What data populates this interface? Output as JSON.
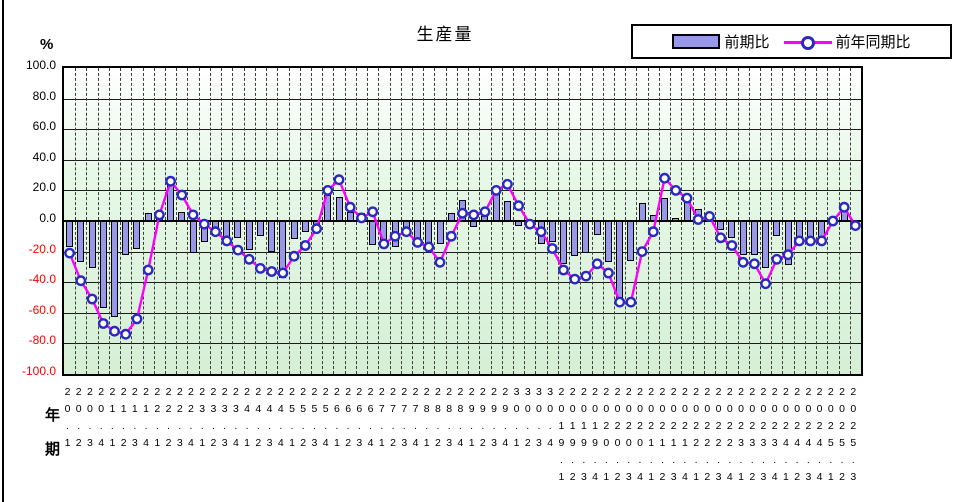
{
  "title": "生産量",
  "y_axis": {
    "unit": "%",
    "ticks": [
      100,
      80,
      60,
      40,
      20,
      0,
      -20,
      -40,
      -60,
      -80,
      -100
    ],
    "tick_format": "one_decimal",
    "negative_tick_color": "#ff0000",
    "positive_tick_color": "#000000"
  },
  "x_axis": {
    "year_label": "年",
    "period_label": "期"
  },
  "legend": [
    {
      "label": "前期比",
      "type": "bar"
    },
    {
      "label": "前年同期比",
      "type": "line"
    }
  ],
  "colors": {
    "bar_fill": "#9898e8",
    "bar_border": "#000000",
    "line": "#ff00ff",
    "marker_fill": "#ffffff",
    "marker_ring": "#2a2ac0",
    "plot_bg_top": "#ffffff",
    "plot_bg_mid": "#e7f8e7",
    "plot_bg_bottom": "#d5efd5"
  },
  "chart_data": {
    "type": "combo-bar-line",
    "title": "生産量",
    "ylabel": "%",
    "ylim": [
      -100,
      100
    ],
    "y_tick_step": 20,
    "grid": true,
    "legend_position": "top-right",
    "categories": [
      "20.1",
      "20.2",
      "20.3",
      "20.4",
      "21.1",
      "21.2",
      "21.3",
      "21.4",
      "22.1",
      "22.2",
      "22.3",
      "22.4",
      "23.1",
      "23.2",
      "23.3",
      "23.4",
      "24.1",
      "24.2",
      "24.3",
      "24.4",
      "25.1",
      "25.2",
      "25.3",
      "25.4",
      "26.1",
      "26.2",
      "26.3",
      "26.4",
      "27.1",
      "27.2",
      "27.3",
      "27.4",
      "28.1",
      "28.2",
      "28.3",
      "28.4",
      "29.1",
      "29.2",
      "29.3",
      "29.4",
      "30.1",
      "30.2",
      "30.3",
      "30.4",
      "2019.1",
      "2019.2",
      "2019.3",
      "2019.4",
      "2020.1",
      "2020.2",
      "2020.3",
      "2020.4",
      "2021.1",
      "2021.2",
      "2021.3",
      "2021.4",
      "2022.1",
      "2022.2",
      "2022.3",
      "2022.4",
      "2023.1",
      "2023.2",
      "2023.3",
      "2023.4",
      "2024.1",
      "2024.2",
      "2024.3",
      "2024.4",
      "2025.1",
      "2025.2",
      "2025.3"
    ],
    "series": [
      {
        "name": "前期比",
        "type": "bar",
        "values": [
          -17,
          -27,
          -31,
          -57,
          -63,
          -22,
          -18,
          5,
          4,
          26,
          6,
          -21,
          -14,
          -10,
          -14,
          -11,
          -19,
          -10,
          -20,
          -37,
          -12,
          -7,
          -4,
          17,
          16,
          6,
          5,
          -16,
          -17,
          -17,
          -8,
          -14,
          -16,
          -15,
          5,
          14,
          -4,
          3,
          18,
          13,
          -3,
          -4,
          -15,
          -14,
          -28,
          -23,
          -21,
          -9,
          -27,
          -51,
          -26,
          12,
          4,
          15,
          2,
          14,
          8,
          3,
          -6,
          -11,
          -22,
          -22,
          -31,
          -10,
          -29,
          -13,
          -11,
          -11,
          -2,
          8,
          -3
        ]
      },
      {
        "name": "前年同期比",
        "type": "line",
        "values": [
          -21,
          -39,
          -51,
          -67,
          -72,
          -74,
          -64,
          -32,
          4,
          26,
          17,
          4,
          -2,
          -7,
          -13,
          -19,
          -25,
          -31,
          -33,
          -34,
          -23,
          -16,
          -5,
          20,
          27,
          9,
          2,
          6,
          -15,
          -10,
          -7,
          -14,
          -17,
          -27,
          -10,
          5,
          4,
          6,
          20,
          24,
          10,
          -2,
          -7,
          -18,
          -32,
          -38,
          -36,
          -28,
          -34,
          -53,
          -53,
          -20,
          -7,
          28,
          20,
          15,
          1,
          3,
          -11,
          -16,
          -27,
          -28,
          -41,
          -25,
          -22,
          -13,
          -13,
          -13,
          0,
          9,
          -3
        ]
      }
    ]
  }
}
